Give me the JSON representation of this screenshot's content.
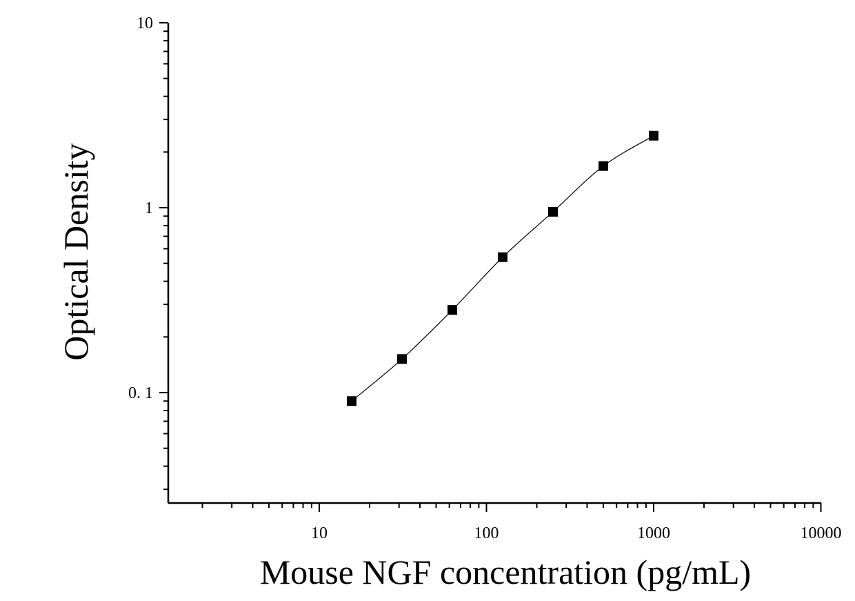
{
  "chart_data": {
    "type": "scatter",
    "title": "",
    "xlabel": "Mouse NGF concentration (pg/mL)",
    "ylabel": "Optical Density",
    "xscale": "log",
    "yscale": "log",
    "xlim": [
      1.2,
      10000
    ],
    "ylim": [
      0.028,
      10
    ],
    "x_ticks": [
      "10",
      "100",
      "1000",
      "10000"
    ],
    "y_ticks": [
      "0. 1",
      "1",
      "10"
    ],
    "grid": false,
    "marker": "square",
    "fit": "smooth curve",
    "series": [
      {
        "x": [
          15.625,
          31.25,
          62.5,
          125,
          250,
          500,
          1000
        ],
        "y": [
          0.09,
          0.152,
          0.28,
          0.54,
          0.95,
          1.68,
          2.45
        ]
      }
    ]
  }
}
